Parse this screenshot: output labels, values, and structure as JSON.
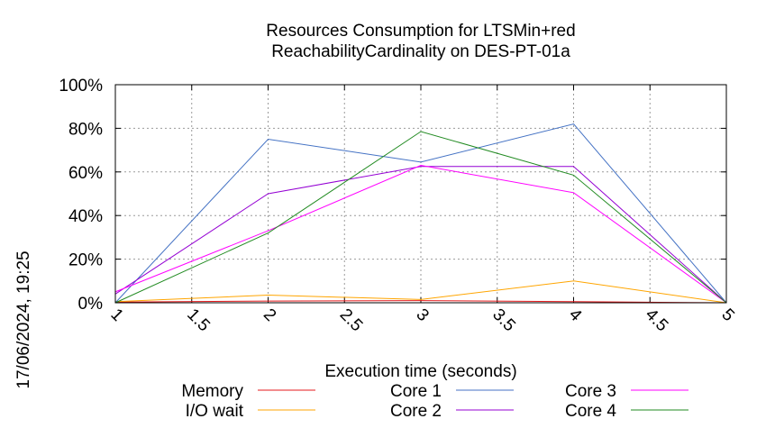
{
  "chart_data": {
    "type": "line",
    "title_lines": [
      "Resources Consumption for LTSMin+red",
      "ReachabilityCardinality on DES-PT-01a"
    ],
    "xlabel": "Execution time (seconds)",
    "ylabel": "",
    "timestamp": "17/06/2024, 19:25",
    "xlim": [
      1,
      5
    ],
    "ylim": [
      0,
      100
    ],
    "x_ticks": [
      1,
      1.5,
      2,
      2.5,
      3,
      3.5,
      4,
      4.5,
      5
    ],
    "x_tick_labels": [
      "1",
      "1.5",
      "2",
      "2.5",
      "3",
      "3.5",
      "4",
      "4.5",
      "5"
    ],
    "y_ticks": [
      0,
      20,
      40,
      60,
      80,
      100
    ],
    "y_tick_labels": [
      "0%",
      "20%",
      "40%",
      "60%",
      "80%",
      "100%"
    ],
    "grid": true,
    "legend_position": "bottom",
    "x": [
      1,
      2,
      3,
      4,
      5
    ],
    "series": [
      {
        "name": "Memory",
        "color": "#e41a1c",
        "values": [
          0.3,
          0.8,
          1.0,
          0.5,
          0
        ]
      },
      {
        "name": "I/O wait",
        "color": "#ffa500",
        "values": [
          0.5,
          3.5,
          1.5,
          10,
          0
        ]
      },
      {
        "name": "Core 1",
        "color": "#4472c4",
        "values": [
          0,
          75,
          64.5,
          82,
          0
        ]
      },
      {
        "name": "Core 2",
        "color": "#9400d3",
        "values": [
          4,
          50,
          62.5,
          62.5,
          0
        ]
      },
      {
        "name": "Core 3",
        "color": "#ff00ff",
        "values": [
          5,
          33,
          63,
          50.5,
          0
        ]
      },
      {
        "name": "Core 4",
        "color": "#228b22",
        "values": [
          0,
          32,
          78.5,
          58.5,
          0
        ]
      }
    ],
    "legend_layout": [
      [
        "Memory",
        "Core 1",
        "Core 3"
      ],
      [
        "I/O wait",
        "Core 2",
        "Core 4"
      ]
    ]
  }
}
